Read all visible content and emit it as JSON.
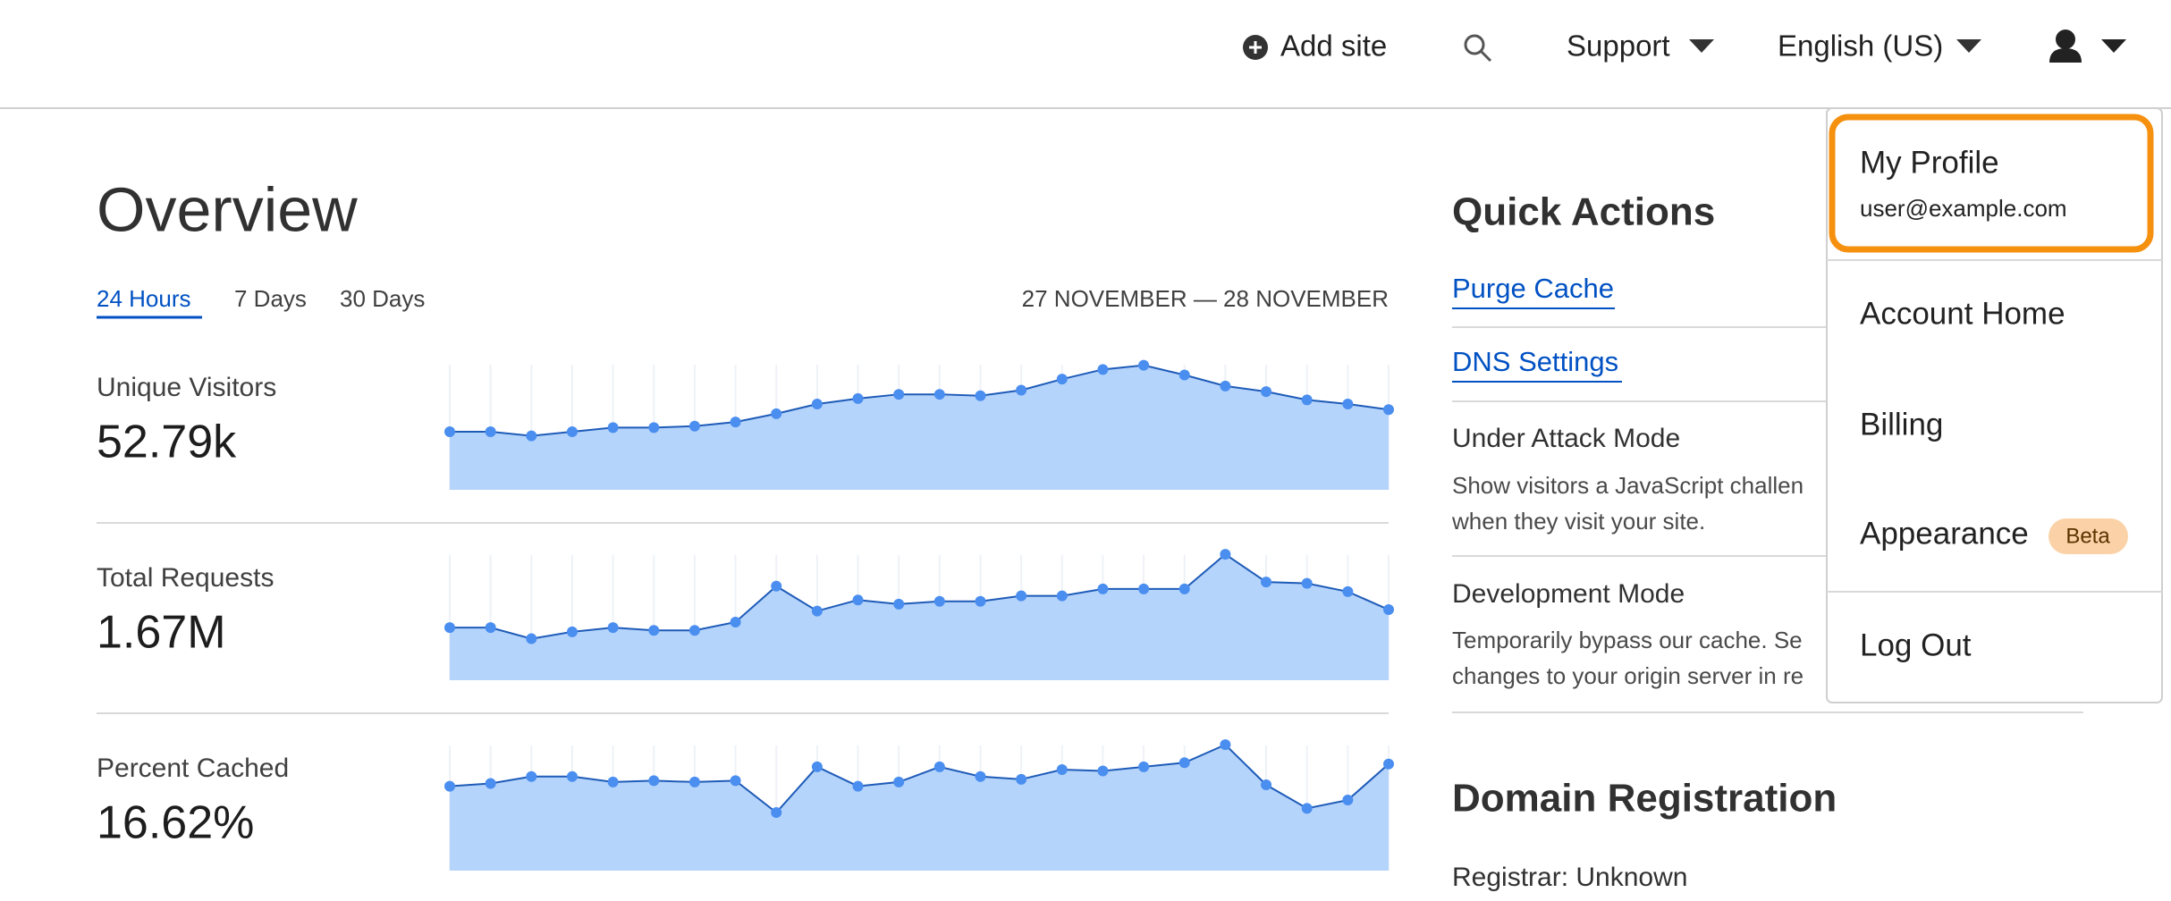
{
  "header": {
    "add_site": "Add site",
    "support": "Support",
    "language": "English (US)"
  },
  "overview": {
    "title": "Overview",
    "tabs": [
      "24 Hours",
      "7 Days",
      "30 Days"
    ],
    "date_range": "27 NOVEMBER — 28 NOVEMBER",
    "metrics": [
      {
        "label": "Unique Visitors",
        "value": "52.79k",
        "values": [
          42,
          42,
          39,
          42,
          45,
          45,
          46,
          49,
          55,
          62,
          66,
          69,
          69,
          68,
          72,
          80,
          87,
          90,
          83,
          75,
          71,
          65,
          62,
          58
        ]
      },
      {
        "label": "Total Requests",
        "value": "1.67M",
        "values": [
          38,
          38,
          30,
          35,
          38,
          36,
          36,
          42,
          68,
          50,
          58,
          55,
          57,
          57,
          61,
          61,
          66,
          66,
          66,
          91,
          71,
          70,
          64,
          51
        ]
      },
      {
        "label": "Percent Cached",
        "value": "16.62%",
        "values": [
          61,
          63,
          68,
          68,
          64,
          65,
          64,
          65,
          42,
          75,
          61,
          64,
          75,
          68,
          66,
          73,
          72,
          75,
          78,
          91,
          62,
          45,
          51,
          77
        ]
      }
    ]
  },
  "quick_actions": {
    "title": "Quick Actions",
    "links": [
      "Purge Cache",
      "DNS Settings"
    ],
    "items": [
      {
        "title": "Under Attack Mode",
        "desc": [
          "Show visitors a JavaScript challen",
          "when they visit your site."
        ]
      },
      {
        "title": "Development Mode",
        "desc": [
          "Temporarily bypass our cache. Se",
          "changes to your origin server in re"
        ]
      }
    ]
  },
  "domain_registration": {
    "title": "Domain Registration",
    "registrar": "Registrar: Unknown"
  },
  "menu": {
    "profile": "My Profile",
    "email": "user@example.com",
    "items": [
      "Account Home",
      "Billing",
      "Appearance",
      "Log Out"
    ],
    "badge": "Beta"
  }
}
